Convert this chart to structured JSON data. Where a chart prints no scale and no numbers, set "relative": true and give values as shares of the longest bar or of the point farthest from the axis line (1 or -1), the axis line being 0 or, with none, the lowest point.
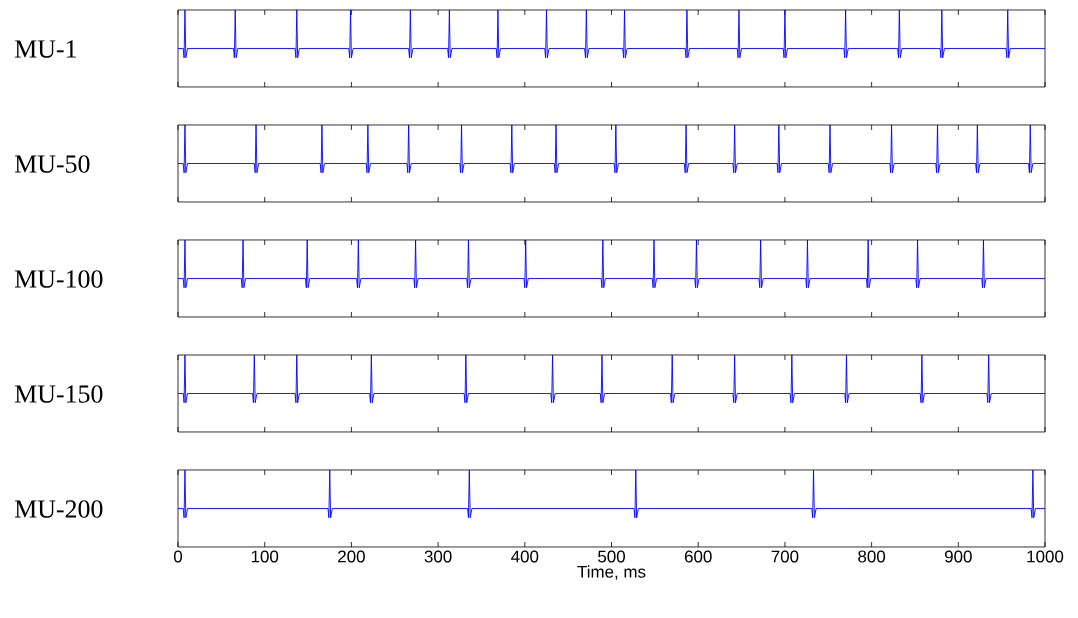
{
  "chart_data": [
    {
      "type": "line",
      "ylabel": "MU-1",
      "relative": true,
      "xlim": [
        0,
        1000
      ],
      "xticks": [
        0,
        100,
        200,
        300,
        400,
        500,
        600,
        700,
        800,
        900,
        1000
      ],
      "tick_labels": false,
      "series": [
        {
          "color": "#0000ff",
          "x": [
            0,
            6,
            7,
            8,
            9,
            11,
            64,
            65,
            66,
            67,
            69,
            135,
            136,
            137,
            138,
            140,
            197,
            198,
            199,
            200,
            202,
            266,
            267,
            268,
            269,
            271,
            311,
            312,
            313,
            314,
            316,
            367,
            368,
            369,
            370,
            372,
            423,
            424,
            425,
            426,
            428,
            469,
            470,
            471,
            472,
            474,
            513,
            514,
            515,
            516,
            518,
            585,
            586,
            587,
            588,
            590,
            645,
            646,
            647,
            648,
            650,
            698,
            699,
            700,
            701,
            703,
            768,
            769,
            770,
            771,
            773,
            830,
            831,
            832,
            833,
            835,
            879,
            880,
            881,
            882,
            884,
            955,
            956,
            957,
            958,
            960,
            1000
          ],
          "values": [
            0.5,
            0.5,
            0.38,
            1,
            0.38,
            0.5,
            0.5,
            0.38,
            1,
            0.38,
            0.5,
            0.5,
            0.38,
            1,
            0.38,
            0.5,
            0.5,
            0.38,
            1,
            0.38,
            0.5,
            0.5,
            0.38,
            1,
            0.38,
            0.5,
            0.5,
            0.38,
            1,
            0.38,
            0.5,
            0.5,
            0.38,
            1,
            0.38,
            0.5,
            0.5,
            0.38,
            1,
            0.38,
            0.5,
            0.5,
            0.38,
            1,
            0.38,
            0.5,
            0.5,
            0.38,
            1,
            0.38,
            0.5,
            0.5,
            0.38,
            1,
            0.38,
            0.5,
            0.5,
            0.38,
            1,
            0.38,
            0.5,
            0.5,
            0.38,
            1,
            0.38,
            0.5,
            0.5,
            0.38,
            1,
            0.38,
            0.5,
            0.5,
            0.38,
            1,
            0.38,
            0.5,
            0.5,
            0.38,
            1,
            0.38,
            0.5,
            0.5,
            0.38,
            1,
            0.38,
            0.5,
            0.5
          ]
        }
      ]
    },
    {
      "type": "line",
      "ylabel": "MU-50",
      "relative": true,
      "xlim": [
        0,
        1000
      ],
      "xticks": [
        0,
        100,
        200,
        300,
        400,
        500,
        600,
        700,
        800,
        900,
        1000
      ],
      "tick_labels": false,
      "series": [
        {
          "color": "#0000ff",
          "x": [
            0,
            6,
            7,
            8,
            9,
            11,
            88,
            89,
            90,
            91,
            93,
            164,
            165,
            166,
            167,
            169,
            217,
            218,
            219,
            220,
            222,
            264,
            265,
            266,
            267,
            269,
            325,
            326,
            327,
            328,
            330,
            383,
            384,
            385,
            386,
            388,
            434,
            435,
            436,
            437,
            439,
            503,
            504,
            505,
            506,
            508,
            584,
            585,
            586,
            587,
            589,
            640,
            641,
            642,
            643,
            645,
            691,
            692,
            693,
            694,
            696,
            750,
            751,
            752,
            753,
            755,
            821,
            822,
            823,
            824,
            826,
            874,
            875,
            876,
            877,
            879,
            920,
            921,
            922,
            923,
            925,
            981,
            982,
            983,
            984,
            986,
            1000
          ],
          "values": [
            0.5,
            0.5,
            0.38,
            1,
            0.38,
            0.5,
            0.5,
            0.38,
            1,
            0.38,
            0.5,
            0.5,
            0.38,
            1,
            0.38,
            0.5,
            0.5,
            0.38,
            1,
            0.38,
            0.5,
            0.5,
            0.38,
            1,
            0.38,
            0.5,
            0.5,
            0.38,
            1,
            0.38,
            0.5,
            0.5,
            0.38,
            1,
            0.38,
            0.5,
            0.5,
            0.38,
            1,
            0.38,
            0.5,
            0.5,
            0.38,
            1,
            0.38,
            0.5,
            0.5,
            0.38,
            1,
            0.38,
            0.5,
            0.5,
            0.38,
            1,
            0.38,
            0.5,
            0.5,
            0.38,
            1,
            0.38,
            0.5,
            0.5,
            0.38,
            1,
            0.38,
            0.5,
            0.5,
            0.38,
            1,
            0.38,
            0.5,
            0.5,
            0.38,
            1,
            0.38,
            0.5,
            0.5,
            0.38,
            1,
            0.38,
            0.5,
            0.5,
            0.38,
            1,
            0.38,
            0.5,
            0.5
          ]
        }
      ]
    },
    {
      "type": "line",
      "ylabel": "MU-100",
      "relative": true,
      "xlim": [
        0,
        1000
      ],
      "xticks": [
        0,
        100,
        200,
        300,
        400,
        500,
        600,
        700,
        800,
        900,
        1000
      ],
      "tick_labels": false,
      "series": [
        {
          "color": "#0000ff",
          "x": [
            0,
            6,
            7,
            8,
            9,
            11,
            73,
            74,
            75,
            76,
            78,
            147,
            148,
            149,
            150,
            152,
            206,
            207,
            208,
            209,
            211,
            272,
            273,
            274,
            275,
            277,
            333,
            334,
            335,
            336,
            338,
            399,
            400,
            401,
            402,
            404,
            488,
            489,
            490,
            491,
            493,
            547,
            548,
            549,
            550,
            552,
            596,
            597,
            598,
            599,
            601,
            670,
            671,
            672,
            673,
            675,
            724,
            725,
            726,
            727,
            729,
            794,
            795,
            796,
            797,
            799,
            851,
            852,
            853,
            854,
            856,
            927,
            928,
            929,
            930,
            932,
            1000
          ],
          "values": [
            0.5,
            0.5,
            0.38,
            1,
            0.38,
            0.5,
            0.5,
            0.38,
            1,
            0.38,
            0.5,
            0.5,
            0.38,
            1,
            0.38,
            0.5,
            0.5,
            0.38,
            1,
            0.38,
            0.5,
            0.5,
            0.38,
            1,
            0.38,
            0.5,
            0.5,
            0.38,
            1,
            0.38,
            0.5,
            0.5,
            0.38,
            1,
            0.38,
            0.5,
            0.5,
            0.38,
            1,
            0.38,
            0.5,
            0.5,
            0.38,
            1,
            0.38,
            0.5,
            0.5,
            0.38,
            1,
            0.38,
            0.5,
            0.5,
            0.38,
            1,
            0.38,
            0.5,
            0.5,
            0.38,
            1,
            0.38,
            0.5,
            0.5,
            0.38,
            1,
            0.38,
            0.5,
            0.5,
            0.38,
            1,
            0.38,
            0.5,
            0.5,
            0.38,
            1,
            0.38,
            0.5,
            0.5
          ]
        }
      ]
    },
    {
      "type": "line",
      "ylabel": "MU-150",
      "relative": true,
      "xlim": [
        0,
        1000
      ],
      "xticks": [
        0,
        100,
        200,
        300,
        400,
        500,
        600,
        700,
        800,
        900,
        1000
      ],
      "tick_labels": false,
      "series": [
        {
          "color": "#0000ff",
          "x": [
            0,
            6,
            7,
            8,
            9,
            11,
            86,
            87,
            88,
            89,
            91,
            135,
            136,
            137,
            138,
            140,
            221,
            222,
            223,
            224,
            226,
            330,
            331,
            332,
            333,
            335,
            430,
            431,
            432,
            433,
            435,
            487,
            488,
            489,
            490,
            492,
            568,
            569,
            570,
            571,
            573,
            640,
            641,
            642,
            643,
            645,
            706,
            707,
            708,
            709,
            711,
            769,
            770,
            771,
            772,
            774,
            856,
            857,
            858,
            859,
            861,
            933,
            934,
            935,
            936,
            938,
            1000
          ],
          "values": [
            0.5,
            0.5,
            0.38,
            1,
            0.38,
            0.5,
            0.5,
            0.38,
            1,
            0.38,
            0.5,
            0.5,
            0.38,
            1,
            0.38,
            0.5,
            0.5,
            0.38,
            1,
            0.38,
            0.5,
            0.5,
            0.38,
            1,
            0.38,
            0.5,
            0.5,
            0.38,
            1,
            0.38,
            0.5,
            0.5,
            0.38,
            1,
            0.38,
            0.5,
            0.5,
            0.38,
            1,
            0.38,
            0.5,
            0.5,
            0.38,
            1,
            0.38,
            0.5,
            0.5,
            0.38,
            1,
            0.38,
            0.5,
            0.5,
            0.38,
            1,
            0.38,
            0.5,
            0.5,
            0.38,
            1,
            0.38,
            0.5,
            0.5,
            0.38,
            1,
            0.38,
            0.5,
            0.5
          ]
        }
      ]
    },
    {
      "type": "line",
      "ylabel": "MU-200",
      "xlabel": "Time, ms",
      "relative": true,
      "xlim": [
        0,
        1000
      ],
      "xticks": [
        0,
        100,
        200,
        300,
        400,
        500,
        600,
        700,
        800,
        900,
        1000
      ],
      "tick_labels": "x",
      "series": [
        {
          "color": "#0000ff",
          "x": [
            0,
            6,
            7,
            8,
            9,
            11,
            173,
            174,
            175,
            176,
            178,
            334,
            335,
            336,
            337,
            339,
            526,
            527,
            528,
            529,
            531,
            731,
            732,
            733,
            734,
            736,
            984,
            985,
            986,
            987,
            989,
            1000
          ],
          "values": [
            0.5,
            0.5,
            0.38,
            1,
            0.38,
            0.5,
            0.5,
            0.38,
            1,
            0.38,
            0.5,
            0.5,
            0.38,
            1,
            0.38,
            0.5,
            0.5,
            0.38,
            1,
            0.38,
            0.5,
            0.5,
            0.38,
            1,
            0.38,
            0.5,
            0.5,
            0.38,
            1,
            0.38,
            0.5,
            0.5
          ]
        }
      ]
    }
  ]
}
